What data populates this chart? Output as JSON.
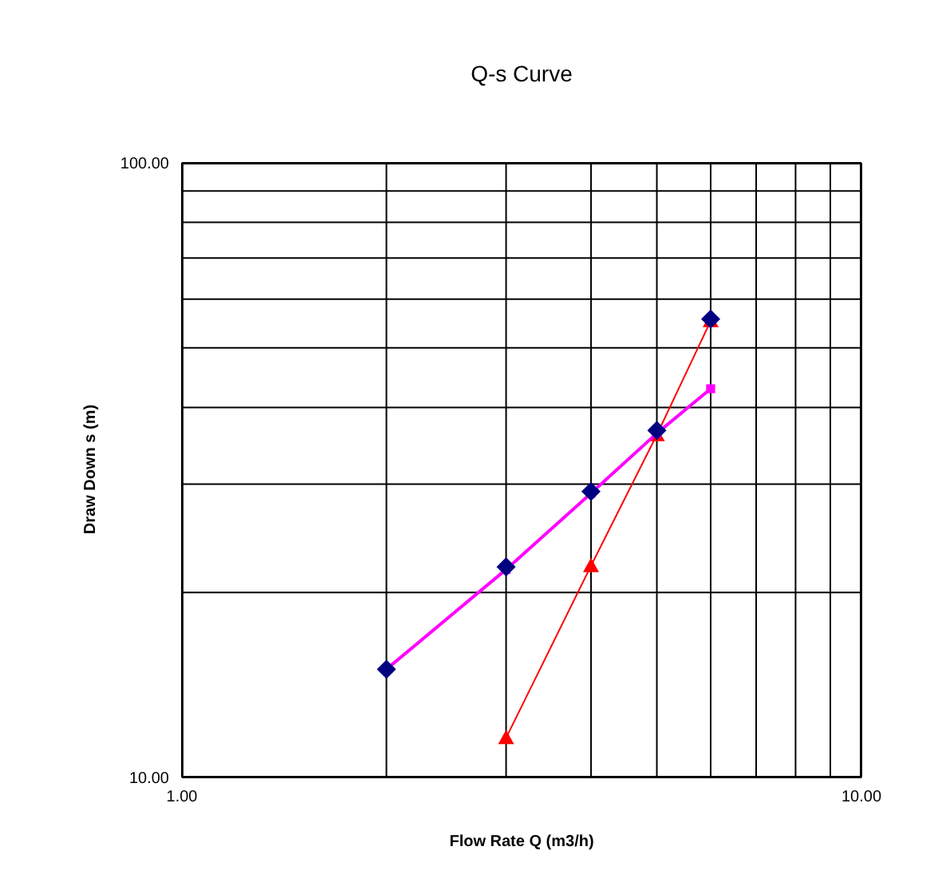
{
  "chart_data": {
    "type": "scatter",
    "title": "Q-s Curve",
    "xlabel": "Flow Rate Q (m3/h)",
    "ylabel": "Draw Down s (m)",
    "log": "xy",
    "grid": true,
    "legend": false,
    "xlim": [
      1,
      10
    ],
    "ylim": [
      10,
      100
    ],
    "xticks": [
      {
        "value": 1,
        "label": "1.00"
      },
      {
        "value": 2,
        "label": null
      },
      {
        "value": 3,
        "label": null
      },
      {
        "value": 4,
        "label": null
      },
      {
        "value": 5,
        "label": null
      },
      {
        "value": 6,
        "label": null
      },
      {
        "value": 7,
        "label": null
      },
      {
        "value": 8,
        "label": null
      },
      {
        "value": 9,
        "label": null
      },
      {
        "value": 10,
        "label": "10.00"
      }
    ],
    "yticks": [
      {
        "value": 10,
        "label": "10.00"
      },
      {
        "value": 20,
        "label": null
      },
      {
        "value": 30,
        "label": null
      },
      {
        "value": 40,
        "label": null
      },
      {
        "value": 50,
        "label": null
      },
      {
        "value": 60,
        "label": null
      },
      {
        "value": 70,
        "label": null
      },
      {
        "value": 80,
        "label": null
      },
      {
        "value": 90,
        "label": null
      },
      {
        "value": 100,
        "label": "100.00"
      }
    ],
    "series": [
      {
        "type": "line",
        "color": "#ff0000",
        "marker": "triangle",
        "x": [
          3,
          4,
          5,
          6
        ],
        "values": [
          11.6,
          22.1,
          36.1,
          55.3
        ]
      },
      {
        "type": "line",
        "color": "#ff00ff",
        "marker": "square",
        "x": [
          2,
          3,
          4,
          5,
          6
        ],
        "values": [
          15,
          21.8,
          29,
          36.3,
          42.9
        ]
      },
      {
        "type": "scatter",
        "color": "#000080",
        "marker": "diamond",
        "x": [
          2,
          3,
          4,
          5,
          6
        ],
        "values": [
          15,
          22,
          29.2,
          36.7,
          55.7
        ]
      }
    ]
  }
}
